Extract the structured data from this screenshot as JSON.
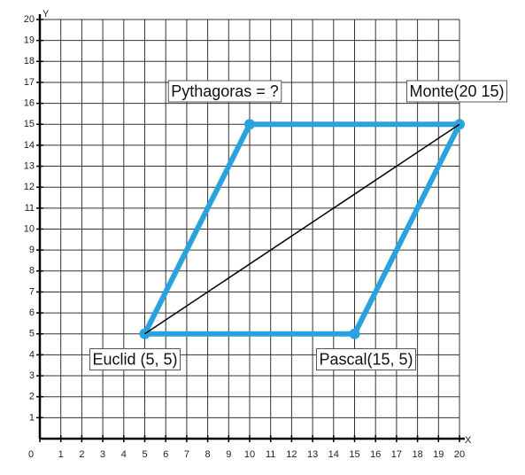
{
  "chart_data": {
    "type": "line",
    "x_label": "X",
    "y_label": "Y",
    "xlim": [
      0,
      20
    ],
    "ylim": [
      0,
      20
    ],
    "xticks": [
      0,
      1,
      2,
      3,
      4,
      5,
      6,
      7,
      8,
      9,
      10,
      11,
      12,
      13,
      14,
      15,
      16,
      17,
      18,
      19,
      20
    ],
    "yticks": [
      0,
      1,
      2,
      3,
      4,
      5,
      6,
      7,
      8,
      9,
      10,
      11,
      12,
      13,
      14,
      15,
      16,
      17,
      18,
      19,
      20
    ],
    "grid": true,
    "series": [
      {
        "color": "#29a3dd",
        "x": [
          5,
          10,
          20,
          15,
          5
        ],
        "values": [
          5,
          15,
          15,
          5,
          5
        ]
      },
      {
        "color": "#000000",
        "x": [
          5,
          20
        ],
        "values": [
          5,
          15
        ]
      }
    ],
    "annotations": [
      {
        "text": "Euclid (5, 5)",
        "x": 5,
        "y": 5
      },
      {
        "text": "Pythagoras = ?",
        "x": 10,
        "y": 15
      },
      {
        "text": "Monte(20 15)",
        "x": 20,
        "y": 15
      },
      {
        "text": "Pascal(15, 5)",
        "x": 15,
        "y": 5
      }
    ]
  }
}
